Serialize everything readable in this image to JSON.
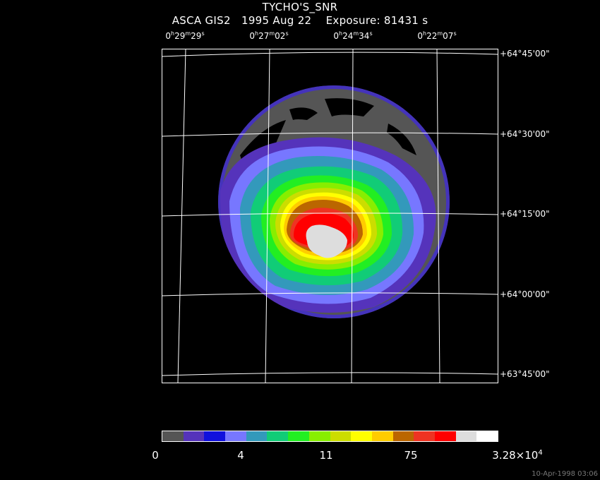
{
  "header": {
    "object": "TYCHO'S_SNR",
    "info": "ASCA GIS2   1995 Aug 22    Exposure: 81431 s"
  },
  "ra_axis": [
    {
      "h": "0",
      "m": "29",
      "s": "29"
    },
    {
      "h": "0",
      "m": "27",
      "s": "02"
    },
    {
      "h": "0",
      "m": "24",
      "s": "34"
    },
    {
      "h": "0",
      "m": "22",
      "s": "07"
    }
  ],
  "dec_axis": [
    "+64°45'00\"",
    "+64°30'00\"",
    "+64°15'00\"",
    "+64°00'00\"",
    "+63°45'00\""
  ],
  "colorbar": {
    "colors": [
      "#555555",
      "#5533bb",
      "#1111dd",
      "#7777ff",
      "#3399bb",
      "#11cc77",
      "#22ee22",
      "#88ee00",
      "#ccdd00",
      "#ffff00",
      "#ffcc00",
      "#bb6600",
      "#ee3322",
      "#ff0000",
      "#dddddd",
      "#ffffff"
    ],
    "labels": [
      "0",
      "4",
      "11",
      "75"
    ],
    "max_mantissa": "3.28×10",
    "max_exp": "4"
  },
  "footer": "10-Apr-1998 03:06"
}
